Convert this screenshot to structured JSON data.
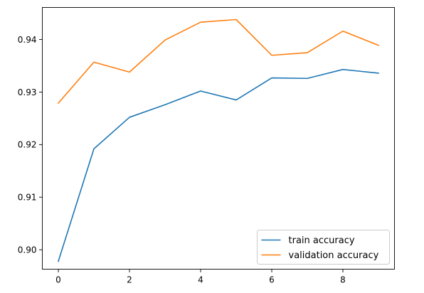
{
  "chart_data": {
    "type": "line",
    "title": "",
    "xlabel": "",
    "ylabel": "",
    "x": [
      0,
      1,
      2,
      3,
      4,
      5,
      6,
      7,
      8,
      9
    ],
    "xlim": [
      -0.45,
      9.45
    ],
    "ylim": [
      0.8963,
      0.9461
    ],
    "xticks": [
      0,
      2,
      4,
      6,
      8
    ],
    "yticks": [
      0.9,
      0.91,
      0.92,
      0.93,
      0.94
    ],
    "ytick_labels": [
      "0.90",
      "0.91",
      "0.92",
      "0.93",
      "0.94"
    ],
    "grid": false,
    "legend_position": "lower-right",
    "series": [
      {
        "name": "train accuracy",
        "color": "#1f77b4",
        "values": [
          0.8978,
          0.9192,
          0.9252,
          0.9276,
          0.9302,
          0.9285,
          0.9327,
          0.9326,
          0.9343,
          0.9336
        ]
      },
      {
        "name": "validation accuracy",
        "color": "#ff7f0e",
        "values": [
          0.9279,
          0.9357,
          0.9338,
          0.9399,
          0.9433,
          0.9438,
          0.937,
          0.9375,
          0.9416,
          0.9389
        ]
      }
    ]
  }
}
